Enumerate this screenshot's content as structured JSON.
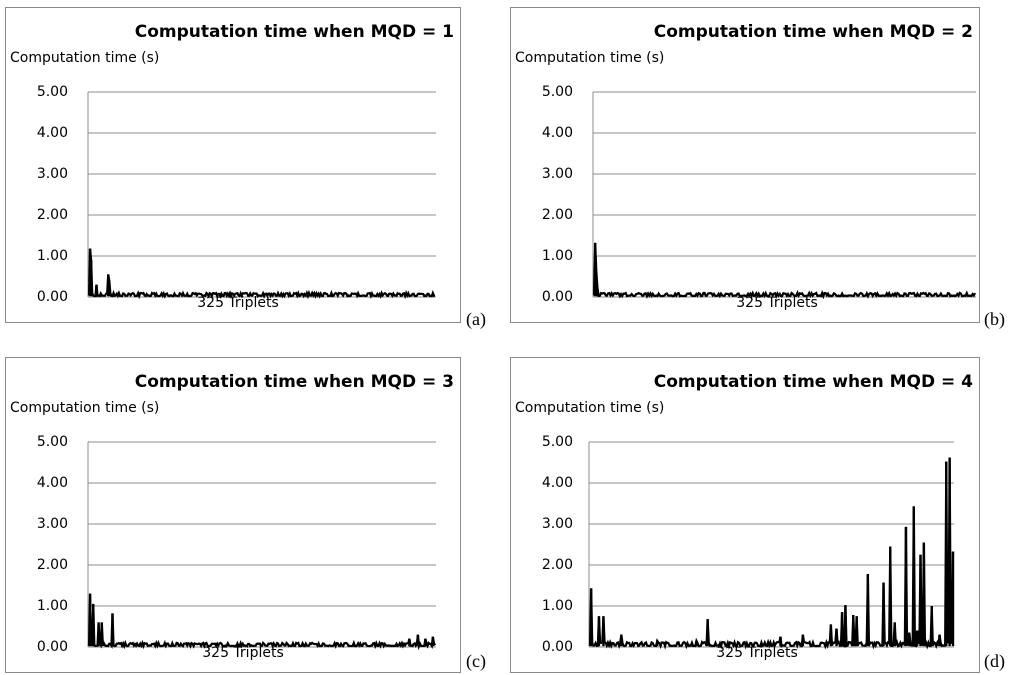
{
  "chart_data": [
    {
      "type": "line",
      "title": "Computation time when MQD = 1",
      "ylabel": "Computation time (s)",
      "xlabel": "325 Triplets",
      "sublabel": "(a)",
      "ylim": [
        0,
        5
      ],
      "yticks": [
        "0.00",
        "1.00",
        "2.00",
        "3.00",
        "4.00",
        "5.00"
      ],
      "grid": true,
      "n_points": 325,
      "baseline": [
        0.02,
        0.1
      ],
      "spikes": [
        [
          1,
          1.18
        ],
        [
          2,
          0.9
        ],
        [
          7,
          0.3
        ],
        [
          18,
          0.55
        ],
        [
          19,
          0.4
        ]
      ]
    },
    {
      "type": "line",
      "title": "Computation time when MQD = 2",
      "ylabel": "Computation time (s)",
      "xlabel": "325 Triplets",
      "sublabel": "(b)",
      "ylim": [
        0,
        5
      ],
      "yticks": [
        "0.00",
        "1.00",
        "2.00",
        "3.00",
        "4.00",
        "5.00"
      ],
      "grid": true,
      "n_points": 325,
      "baseline": [
        0.02,
        0.1
      ],
      "spikes": [
        [
          1,
          1.32
        ],
        [
          2,
          0.6
        ],
        [
          3,
          0.2
        ]
      ]
    },
    {
      "type": "line",
      "title": "Computation time when MQD = 3",
      "ylabel": "Computation time (s)",
      "xlabel": "325 Triplets",
      "sublabel": "(c)",
      "ylim": [
        0,
        5
      ],
      "yticks": [
        "0.00",
        "1.00",
        "2.00",
        "3.00",
        "4.00",
        "5.00"
      ],
      "grid": true,
      "n_points": 325,
      "baseline": [
        0.02,
        0.1
      ],
      "spikes": [
        [
          1,
          1.3
        ],
        [
          4,
          1.05
        ],
        [
          9,
          0.6
        ],
        [
          12,
          0.6
        ],
        [
          22,
          0.82
        ],
        [
          300,
          0.2
        ],
        [
          308,
          0.3
        ],
        [
          315,
          0.2
        ],
        [
          322,
          0.25
        ]
      ]
    },
    {
      "type": "line",
      "title": "Computation time when MQD = 4",
      "ylabel": "Computation time (s)",
      "xlabel": "325 Triplets",
      "sublabel": "(d)",
      "ylim": [
        0,
        5
      ],
      "yticks": [
        "0.00",
        "1.00",
        "2.00",
        "3.00",
        "4.00",
        "5.00"
      ],
      "grid": true,
      "n_points": 325,
      "baseline": [
        0.02,
        0.12
      ],
      "spikes": [
        [
          1,
          1.43
        ],
        [
          8,
          0.75
        ],
        [
          12,
          0.75
        ],
        [
          28,
          0.3
        ],
        [
          60,
          0.15
        ],
        [
          95,
          0.15
        ],
        [
          105,
          0.68
        ],
        [
          170,
          0.25
        ],
        [
          190,
          0.3
        ],
        [
          215,
          0.55
        ],
        [
          220,
          0.45
        ],
        [
          225,
          0.85
        ],
        [
          228,
          1.02
        ],
        [
          235,
          0.78
        ],
        [
          238,
          0.75
        ],
        [
          248,
          1.78
        ],
        [
          262,
          1.57
        ],
        [
          268,
          2.45
        ],
        [
          272,
          0.6
        ],
        [
          282,
          2.93
        ],
        [
          285,
          0.35
        ],
        [
          289,
          3.43
        ],
        [
          292,
          0.4
        ],
        [
          295,
          2.25
        ],
        [
          298,
          2.55
        ],
        [
          305,
          1.0
        ],
        [
          312,
          0.3
        ],
        [
          318,
          4.52
        ],
        [
          321,
          4.62
        ],
        [
          324,
          2.33
        ]
      ]
    }
  ]
}
